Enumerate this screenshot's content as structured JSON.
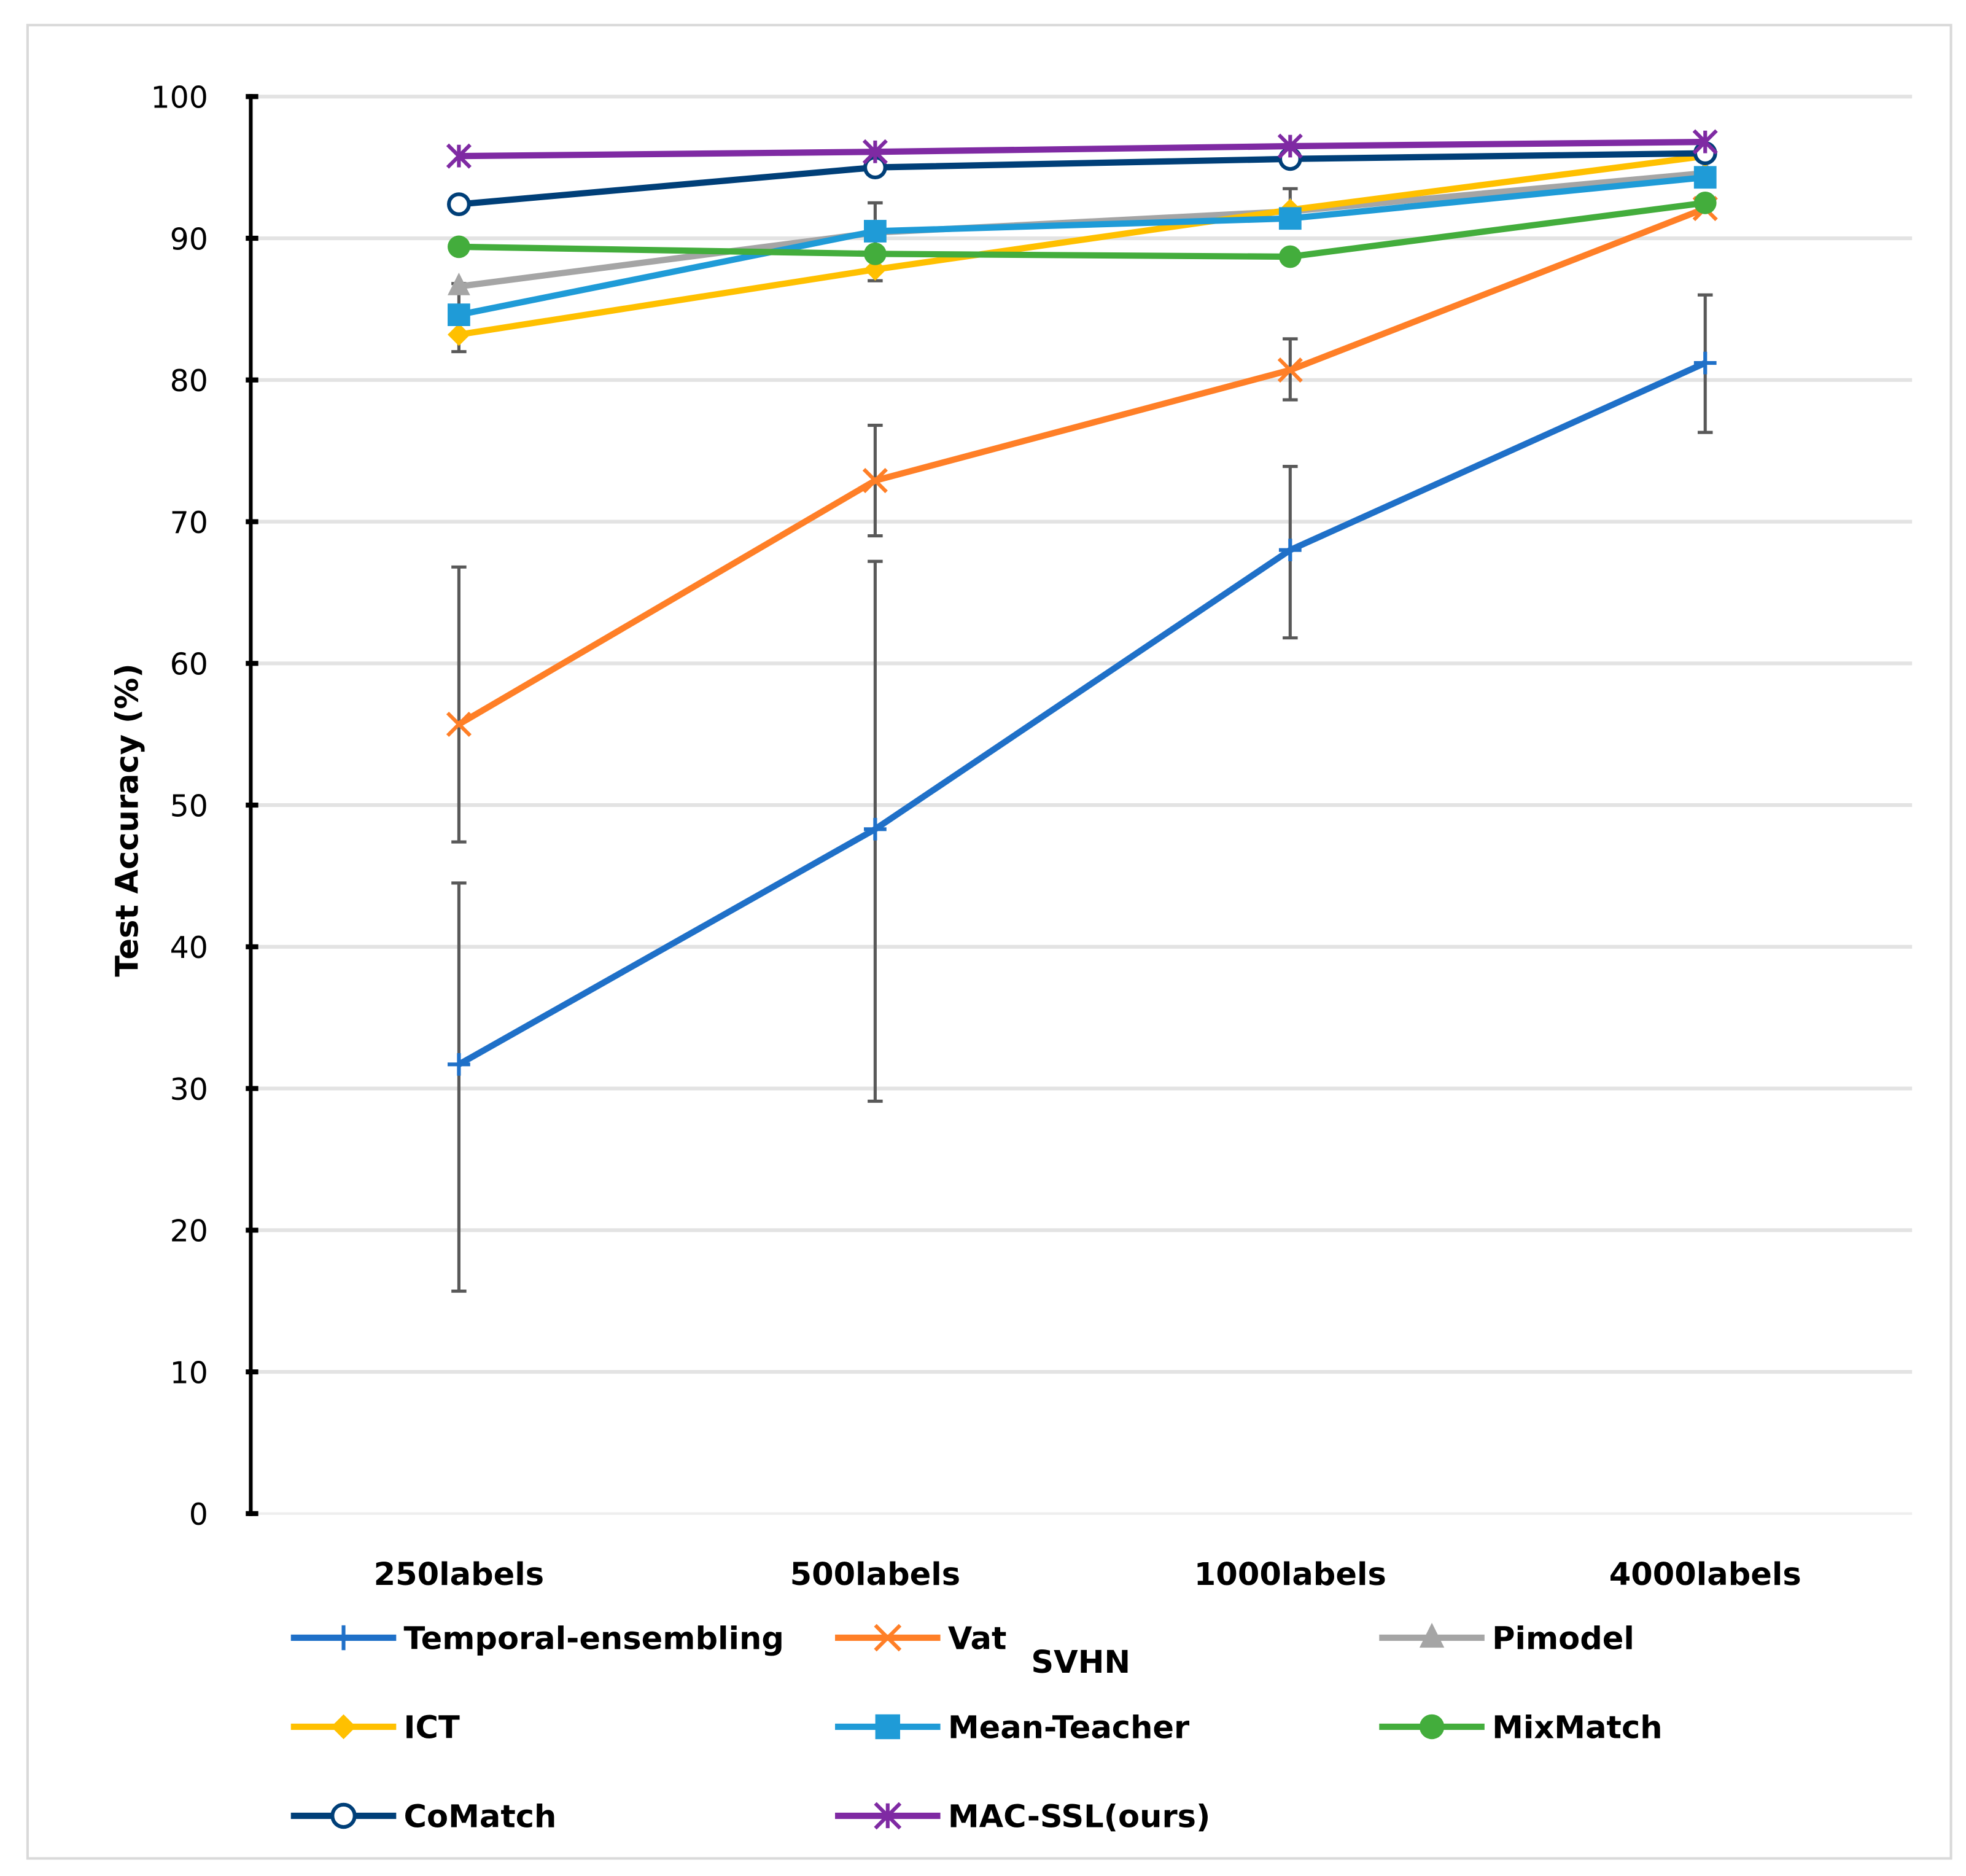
{
  "chart_data": {
    "type": "line",
    "title": "SVHN",
    "xlabel": "",
    "ylabel": "Test  Accuracy (%)",
    "ylim": [
      0,
      100
    ],
    "yticks": [
      0,
      10,
      20,
      30,
      40,
      50,
      60,
      70,
      80,
      90,
      100
    ],
    "grid": true,
    "legend_placement": "bottom",
    "categories": [
      "250labels",
      "500labels",
      "1000labels",
      "4000labels"
    ],
    "series": [
      {
        "name": "Temporal-ensembling",
        "color": "#1f70c8",
        "marker": "plus",
        "values": [
          31.7,
          48.3,
          68.0,
          81.2
        ],
        "error_bars": [
          [
            15.7,
            44.5
          ],
          [
            29.1,
            67.2
          ],
          [
            61.8,
            73.9
          ],
          [
            76.3,
            86.0
          ]
        ]
      },
      {
        "name": "Vat",
        "color": "#ff7f27",
        "marker": "x",
        "values": [
          55.7,
          72.9,
          80.7,
          92.1
        ],
        "error_bars": [
          [
            47.4,
            66.8
          ],
          [
            69.0,
            76.8
          ],
          [
            78.6,
            82.9
          ],
          null
        ]
      },
      {
        "name": "Pimodel",
        "color": "#a5a5a5",
        "marker": "triangle",
        "values": [
          86.6,
          90.4,
          91.9,
          94.6
        ],
        "error_bars": [
          [
            82.0,
            86.8
          ],
          [
            87.0,
            92.5
          ],
          [
            91.0,
            93.5
          ],
          null
        ]
      },
      {
        "name": "ICT",
        "color": "#ffc000",
        "marker": "diamond",
        "values": [
          83.2,
          87.8,
          92.0,
          95.8
        ],
        "error_bars": null
      },
      {
        "name": "Mean-Teacher",
        "color": "#1f9bd7",
        "marker": "square",
        "values": [
          84.6,
          90.5,
          91.4,
          94.3
        ],
        "error_bars": null
      },
      {
        "name": "MixMatch",
        "color": "#43ad3c",
        "marker": "circle",
        "values": [
          89.4,
          88.9,
          88.7,
          92.5
        ],
        "error_bars": null
      },
      {
        "name": "CoMatch",
        "color": "#003f78",
        "marker": "open-circle",
        "values": [
          92.4,
          95.0,
          95.6,
          96.0
        ],
        "error_bars": null
      },
      {
        "name": "MAC-SSL(ours)",
        "color": "#7f2aa3",
        "marker": "asterisk",
        "values": [
          95.8,
          96.1,
          96.5,
          96.8
        ],
        "error_bars": null
      }
    ]
  }
}
